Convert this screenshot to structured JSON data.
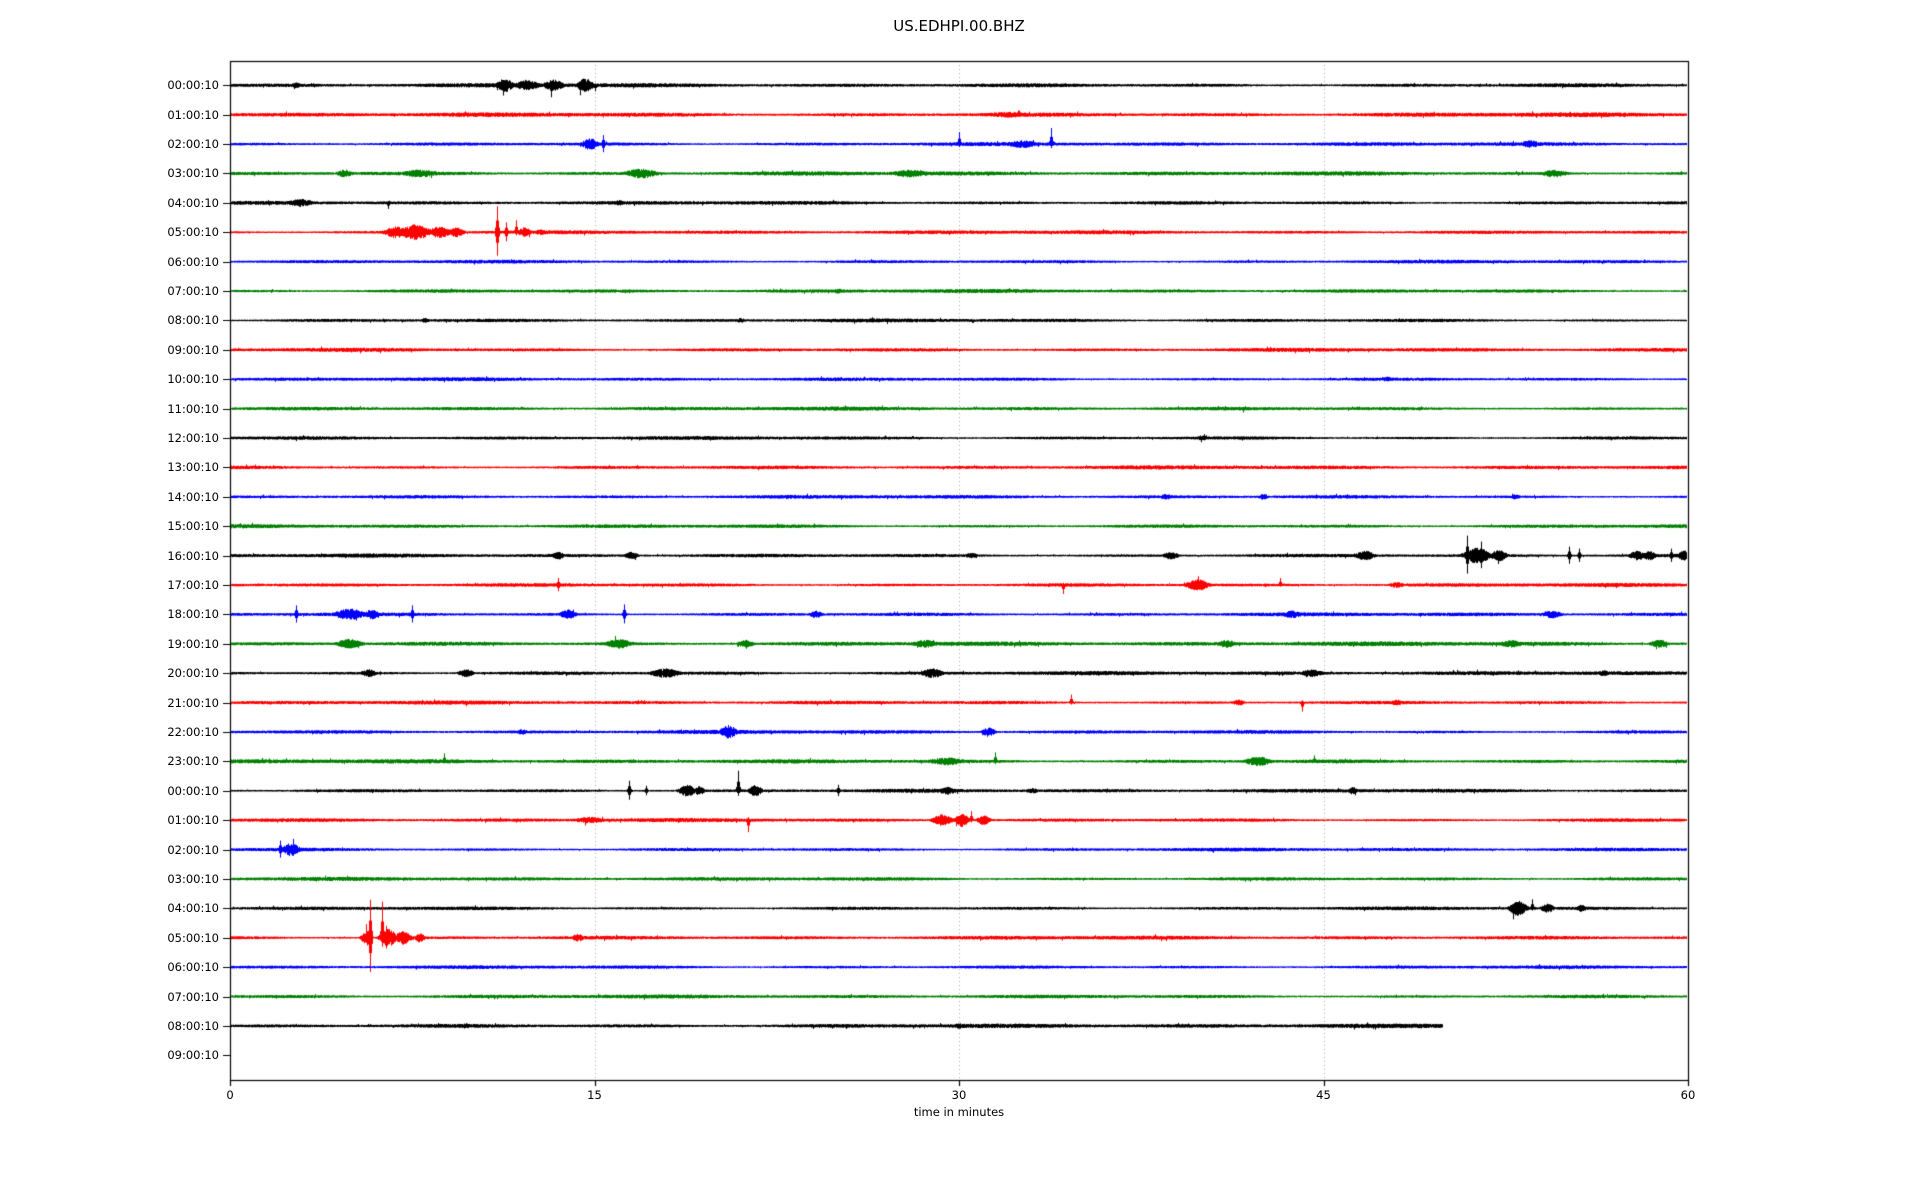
{
  "chart_data": {
    "type": "line",
    "subtype": "seismogram-dayplot",
    "title": "US.EDHPI.00.BHZ",
    "xlabel": "time in minutes",
    "xlim": [
      0,
      60
    ],
    "x_ticks": [
      "0",
      "15",
      "30",
      "45",
      "60"
    ],
    "x_tick_values": [
      0,
      15,
      30,
      45,
      60
    ],
    "gridlines_minutes": [
      15,
      30,
      45
    ],
    "grid_style": "dotted-vertical",
    "legend": "none",
    "colors": {
      "k": "#000000",
      "r": "#ff0000",
      "b": "#0000ff",
      "g": "#008000"
    },
    "grid_color": "#aaaaaa",
    "rows": [
      {
        "label": "00:00:10",
        "c": "k",
        "n": 2.2,
        "end": 60,
        "bursts": [
          [
            2.7,
            0.3,
            3
          ],
          [
            11.3,
            0.5,
            7
          ],
          [
            12.2,
            0.8,
            5
          ],
          [
            13.3,
            0.6,
            6
          ],
          [
            14.6,
            0.5,
            7
          ]
        ],
        "spikes": [
          [
            13.2,
            12,
            "d"
          ],
          [
            14.4,
            10,
            "d"
          ],
          [
            15.0,
            6,
            "d"
          ]
        ]
      },
      {
        "label": "01:00:10",
        "c": "r",
        "n": 2.4,
        "end": 60,
        "bursts": [
          [
            32,
            1.5,
            3
          ]
        ],
        "spikes": []
      },
      {
        "label": "02:00:10",
        "c": "b",
        "n": 2.0,
        "end": 60,
        "bursts": [
          [
            14.8,
            0.5,
            6
          ],
          [
            32.6,
            1.0,
            4
          ],
          [
            53.5,
            0.6,
            4
          ]
        ],
        "spikes": [
          [
            15.35,
            9,
            "b"
          ],
          [
            30.0,
            12,
            "u"
          ],
          [
            33.8,
            16,
            "u"
          ]
        ]
      },
      {
        "label": "03:00:10",
        "c": "g",
        "n": 2.2,
        "end": 60,
        "bursts": [
          [
            4.7,
            0.5,
            4
          ],
          [
            7.8,
            1.2,
            4
          ],
          [
            16.9,
            1.0,
            5
          ],
          [
            28,
            1.2,
            4
          ],
          [
            54.5,
            0.8,
            4
          ]
        ],
        "spikes": []
      },
      {
        "label": "04:00:10",
        "c": "k",
        "n": 2.0,
        "end": 60,
        "bursts": [
          [
            2.9,
            0.8,
            4
          ],
          [
            16,
            0.3,
            3
          ]
        ],
        "spikes": [
          [
            6.5,
            6,
            "d"
          ]
        ]
      },
      {
        "label": "05:00:10",
        "c": "r",
        "n": 2.0,
        "end": 60,
        "bursts": [
          [
            6.8,
            0.7,
            6
          ],
          [
            7.6,
            0.9,
            8
          ],
          [
            8.6,
            0.7,
            6
          ],
          [
            9.3,
            0.5,
            5
          ],
          [
            12.1,
            0.4,
            5
          ],
          [
            12.8,
            0.5,
            3
          ]
        ],
        "spikes": [
          [
            11.0,
            26,
            "b"
          ],
          [
            11.35,
            10,
            "b"
          ],
          [
            11.75,
            12,
            "u"
          ]
        ]
      },
      {
        "label": "06:00:10",
        "c": "b",
        "n": 1.9,
        "end": 60,
        "bursts": [],
        "spikes": []
      },
      {
        "label": "07:00:10",
        "c": "g",
        "n": 2.0,
        "end": 60,
        "bursts": [
          [
            25,
            0.4,
            2.5
          ]
        ],
        "spikes": []
      },
      {
        "label": "08:00:10",
        "c": "k",
        "n": 1.9,
        "end": 60,
        "bursts": [
          [
            8,
            0.3,
            2.5
          ],
          [
            21,
            0.3,
            2.5
          ]
        ],
        "spikes": []
      },
      {
        "label": "09:00:10",
        "c": "r",
        "n": 2.1,
        "end": 60,
        "bursts": [],
        "spikes": []
      },
      {
        "label": "10:00:10",
        "c": "b",
        "n": 1.9,
        "end": 60,
        "bursts": [
          [
            47.6,
            0.3,
            3
          ]
        ],
        "spikes": []
      },
      {
        "label": "11:00:10",
        "c": "g",
        "n": 2.0,
        "end": 60,
        "bursts": [],
        "spikes": [
          [
            41.7,
            4,
            "d"
          ]
        ]
      },
      {
        "label": "12:00:10",
        "c": "k",
        "n": 1.9,
        "end": 60,
        "bursts": [
          [
            40,
            0.3,
            3
          ]
        ],
        "spikes": []
      },
      {
        "label": "13:00:10",
        "c": "r",
        "n": 2.0,
        "end": 60,
        "bursts": [],
        "spikes": []
      },
      {
        "label": "14:00:10",
        "c": "b",
        "n": 1.9,
        "end": 60,
        "bursts": [
          [
            38.5,
            0.4,
            3
          ],
          [
            42.5,
            0.3,
            3
          ],
          [
            52.9,
            0.3,
            3
          ]
        ],
        "spikes": []
      },
      {
        "label": "15:00:10",
        "c": "g",
        "n": 2.0,
        "end": 60,
        "bursts": [],
        "spikes": []
      },
      {
        "label": "16:00:10",
        "c": "k",
        "n": 2.0,
        "end": 60,
        "bursts": [
          [
            13.5,
            0.4,
            4
          ],
          [
            16.5,
            0.4,
            4
          ],
          [
            30.5,
            0.4,
            3
          ],
          [
            38.7,
            0.5,
            4
          ],
          [
            46.7,
            0.6,
            5
          ],
          [
            51.3,
            0.8,
            8
          ],
          [
            52.2,
            0.5,
            6
          ],
          [
            57.9,
            0.5,
            5
          ],
          [
            58.4,
            0.4,
            5
          ],
          [
            59.8,
            0.3,
            6
          ]
        ],
        "spikes": [
          [
            50.9,
            20,
            "b"
          ],
          [
            51.5,
            14,
            "b"
          ],
          [
            55.1,
            9,
            "b"
          ],
          [
            55.5,
            7,
            "b"
          ],
          [
            59.3,
            7,
            "b"
          ]
        ]
      },
      {
        "label": "17:00:10",
        "c": "r",
        "n": 2.0,
        "end": 60,
        "bursts": [
          [
            39.8,
            0.7,
            6
          ],
          [
            48,
            0.5,
            3
          ]
        ],
        "spikes": [
          [
            13.5,
            7,
            "b"
          ],
          [
            34.3,
            9,
            "d"
          ],
          [
            43.2,
            7,
            "u"
          ]
        ]
      },
      {
        "label": "18:00:10",
        "c": "b",
        "n": 2.0,
        "end": 60,
        "bursts": [
          [
            4.9,
            0.9,
            6
          ],
          [
            5.8,
            0.5,
            5
          ],
          [
            13.9,
            0.5,
            5
          ],
          [
            24.1,
            0.4,
            4
          ],
          [
            43.7,
            0.6,
            4
          ],
          [
            54.4,
            0.6,
            4
          ]
        ],
        "spikes": [
          [
            2.7,
            9,
            "b"
          ],
          [
            7.5,
            9,
            "b"
          ],
          [
            16.2,
            10,
            "b"
          ]
        ]
      },
      {
        "label": "19:00:10",
        "c": "g",
        "n": 2.3,
        "end": 60,
        "bursts": [
          [
            4.9,
            0.8,
            5
          ],
          [
            16,
            0.8,
            5
          ],
          [
            21.2,
            0.5,
            4
          ],
          [
            28.6,
            0.8,
            4
          ],
          [
            41,
            0.6,
            4
          ],
          [
            52.7,
            0.7,
            4
          ],
          [
            58.8,
            0.6,
            4
          ]
        ],
        "spikes": []
      },
      {
        "label": "20:00:10",
        "c": "k",
        "n": 2.1,
        "end": 60,
        "bursts": [
          [
            5.7,
            0.5,
            4
          ],
          [
            9.7,
            0.5,
            4
          ],
          [
            17.9,
            0.9,
            5
          ],
          [
            28.9,
            0.7,
            5
          ],
          [
            44.5,
            0.7,
            4
          ],
          [
            56.5,
            0.4,
            3
          ]
        ],
        "spikes": []
      },
      {
        "label": "21:00:10",
        "c": "r",
        "n": 2.0,
        "end": 60,
        "bursts": [
          [
            41.5,
            0.4,
            3
          ],
          [
            48,
            0.4,
            3
          ]
        ],
        "spikes": [
          [
            34.6,
            8,
            "u"
          ],
          [
            44.1,
            9,
            "d"
          ]
        ]
      },
      {
        "label": "22:00:10",
        "c": "b",
        "n": 2.0,
        "end": 60,
        "bursts": [
          [
            12,
            0.3,
            3
          ],
          [
            20.5,
            0.5,
            7
          ],
          [
            31.2,
            0.4,
            5
          ]
        ],
        "spikes": []
      },
      {
        "label": "23:00:10",
        "c": "g",
        "n": 2.2,
        "end": 60,
        "bursts": [
          [
            29.5,
            1.2,
            4
          ],
          [
            42.3,
            0.8,
            5
          ]
        ],
        "spikes": [
          [
            8.8,
            8,
            "u"
          ],
          [
            31.5,
            9,
            "u"
          ],
          [
            44.6,
            6,
            "u"
          ]
        ]
      },
      {
        "label": "00:00:10",
        "c": "k",
        "n": 2.0,
        "end": 60,
        "bursts": [
          [
            18.8,
            0.5,
            6
          ],
          [
            19.3,
            0.3,
            5
          ],
          [
            21.6,
            0.4,
            6
          ],
          [
            29.5,
            0.6,
            4
          ],
          [
            33,
            0.4,
            3
          ],
          [
            46.2,
            0.3,
            4
          ]
        ],
        "spikes": [
          [
            16.4,
            10,
            "b"
          ],
          [
            17.1,
            5,
            "b"
          ],
          [
            20.9,
            20,
            "u"
          ],
          [
            25.0,
            6,
            "b"
          ]
        ]
      },
      {
        "label": "01:00:10",
        "c": "r",
        "n": 2.0,
        "end": 60,
        "bursts": [
          [
            14.8,
            1.0,
            3.5
          ],
          [
            29.3,
            0.6,
            6
          ],
          [
            30.1,
            0.4,
            7
          ],
          [
            31,
            0.4,
            5
          ]
        ],
        "spikes": [
          [
            21.3,
            12,
            "d"
          ],
          [
            30.5,
            9,
            "u"
          ]
        ]
      },
      {
        "label": "02:00:10",
        "c": "b",
        "n": 1.9,
        "end": 60,
        "bursts": [
          [
            2.5,
            0.5,
            7
          ]
        ],
        "spikes": [
          [
            2.05,
            9,
            "b"
          ]
        ]
      },
      {
        "label": "03:00:10",
        "c": "g",
        "n": 2.0,
        "end": 60,
        "bursts": [],
        "spikes": []
      },
      {
        "label": "04:00:10",
        "c": "k",
        "n": 1.9,
        "end": 60,
        "bursts": [
          [
            53.0,
            0.5,
            8
          ],
          [
            54.2,
            0.4,
            5
          ],
          [
            55.6,
            0.3,
            4
          ]
        ],
        "spikes": [
          [
            52.8,
            11,
            "d"
          ],
          [
            53.6,
            9,
            "u"
          ]
        ]
      },
      {
        "label": "05:00:10",
        "c": "r",
        "n": 2.0,
        "end": 60,
        "bursts": [
          [
            5.6,
            0.3,
            8
          ],
          [
            6.5,
            0.5,
            9
          ],
          [
            7.1,
            0.5,
            7
          ],
          [
            7.8,
            0.3,
            5
          ],
          [
            14.3,
            0.4,
            4
          ]
        ],
        "spikes": [
          [
            5.75,
            38,
            "b"
          ],
          [
            6.25,
            36,
            "u"
          ],
          [
            6.4,
            12,
            "b"
          ]
        ]
      },
      {
        "label": "06:00:10",
        "c": "b",
        "n": 1.9,
        "end": 60,
        "bursts": [],
        "spikes": []
      },
      {
        "label": "07:00:10",
        "c": "g",
        "n": 2.0,
        "end": 60,
        "bursts": [],
        "spikes": []
      },
      {
        "label": "08:00:10",
        "c": "k",
        "n": 2.3,
        "end": 49.9,
        "bursts": [
          [
            9.7,
            0.3,
            3
          ],
          [
            30,
            0.5,
            3
          ]
        ],
        "spikes": []
      },
      {
        "label": "09:00:10",
        "c": "k",
        "n": 0,
        "end": 0,
        "bursts": [],
        "spikes": []
      }
    ]
  }
}
